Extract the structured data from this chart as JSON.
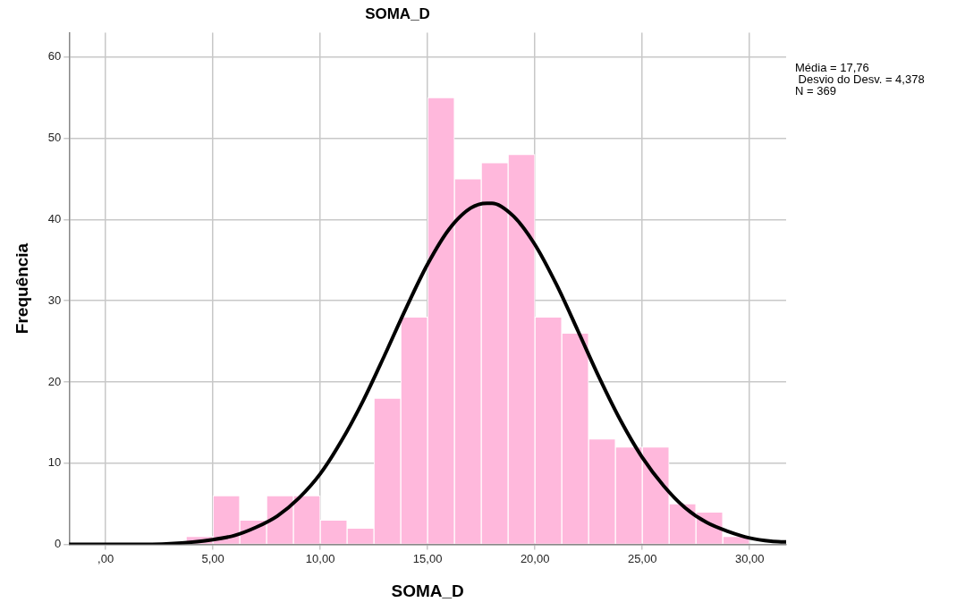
{
  "chart_data": {
    "type": "histogram",
    "title": "SOMA_D",
    "xlabel": "SOMA_D",
    "ylabel": "Frequência",
    "bins": [
      3.75,
      5,
      6.25,
      7.5,
      8.75,
      10,
      11.25,
      12.5,
      13.75,
      15,
      16.25,
      17.5,
      18.75,
      20,
      21.25,
      22.5,
      23.75,
      25,
      26.25,
      27.5,
      28.75,
      30
    ],
    "values": [
      1,
      6,
      3,
      6,
      6,
      3,
      2,
      18,
      28,
      55,
      45,
      47,
      48,
      28,
      26,
      13,
      12,
      12,
      5,
      4,
      1
    ],
    "color": "#ffb8dc",
    "series": [
      {
        "type": "line",
        "color": "#000000",
        "x": [
          -1.7,
          1,
          3,
          5,
          6,
          7,
          8,
          9,
          10,
          11,
          12,
          13,
          14,
          15,
          16,
          17,
          17.76,
          18,
          19,
          20,
          21,
          22,
          23,
          24,
          25,
          26,
          27,
          28,
          29,
          30,
          31,
          31.7
        ],
        "values": [
          0,
          0,
          0.1,
          0.6,
          1.1,
          2.1,
          3.5,
          5.7,
          8.7,
          12.8,
          17.7,
          23.3,
          29.1,
          34.5,
          38.8,
          41.4,
          42,
          42,
          40.4,
          36.9,
          32,
          26.3,
          20.5,
          15.2,
          10.7,
          7.2,
          4.5,
          2.7,
          1.6,
          0.8,
          0.4,
          0.3
        ]
      }
    ],
    "xlim": [
      -1.7,
      31.7
    ],
    "xticks": [
      {
        "value": 0,
        "label": ",00"
      },
      {
        "value": 5,
        "label": "5,00"
      },
      {
        "value": 10,
        "label": "10,00"
      },
      {
        "value": 15,
        "label": "15,00"
      },
      {
        "value": 20,
        "label": "20,00"
      },
      {
        "value": 25,
        "label": "25,00"
      },
      {
        "value": 30,
        "label": "30,00"
      }
    ],
    "ylim": [
      0,
      63
    ],
    "yticks": [
      0,
      10,
      20,
      30,
      40,
      50,
      60
    ],
    "grid": true,
    "legend": false,
    "marker": "none",
    "line_style": "solid",
    "annotations": [
      "Média = 17,76",
      " Desvio do Desv. = 4,378",
      "N = 369"
    ]
  }
}
